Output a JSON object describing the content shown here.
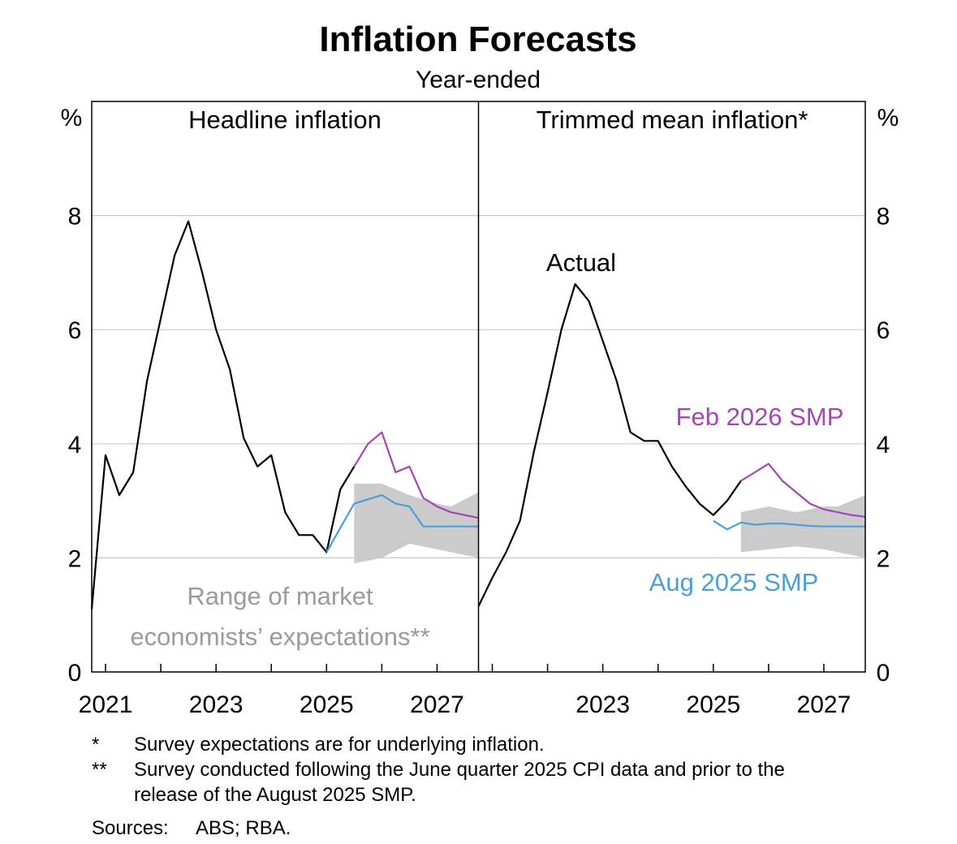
{
  "chart_data": {
    "type": "line",
    "title": "Inflation Forecasts",
    "subtitle": "Year-ended",
    "y_unit": "%",
    "ylim": [
      0,
      10
    ],
    "y_ticks": [
      0,
      2,
      4,
      6,
      8
    ],
    "grid": true,
    "colors": {
      "actual": "#000000",
      "feb_2026_smp": "#a545b7",
      "aug_2025_smp": "#4a9fd6",
      "range": "#cbcbcb",
      "range_label": "#9b9b9b",
      "grid": "#c8c8c8"
    },
    "panels": [
      {
        "id": "headline",
        "title": "Headline inflation",
        "xlim": [
          2020.75,
          2027.75
        ],
        "x_tick_labels": [
          "2021",
          "2023",
          "2025",
          "2027"
        ],
        "x_tick_values": [
          2021,
          2023,
          2025,
          2027
        ],
        "series": [
          {
            "name": "Actual",
            "color_key": "actual",
            "x": [
              2020.75,
              2021.0,
              2021.25,
              2021.5,
              2021.75,
              2022.0,
              2022.25,
              2022.5,
              2022.75,
              2023.0,
              2023.25,
              2023.5,
              2023.75,
              2024.0,
              2024.25,
              2024.5,
              2024.75,
              2025.0,
              2025.25,
              2025.5
            ],
            "y": [
              1.1,
              3.8,
              3.1,
              3.5,
              5.1,
              6.2,
              7.3,
              7.9,
              7.0,
              6.0,
              5.3,
              4.1,
              3.6,
              3.8,
              2.8,
              2.4,
              2.4,
              2.1,
              3.2,
              3.6
            ]
          },
          {
            "name": "Feb 2026 SMP",
            "color_key": "feb_2026_smp",
            "x": [
              2025.5,
              2025.75,
              2026.0,
              2026.25,
              2026.5,
              2026.75,
              2027.0,
              2027.25,
              2027.5,
              2027.75
            ],
            "y": [
              3.6,
              4.0,
              4.2,
              3.5,
              3.6,
              3.05,
              2.9,
              2.8,
              2.75,
              2.7
            ]
          },
          {
            "name": "Aug 2025 SMP",
            "color_key": "aug_2025_smp",
            "x": [
              2025.0,
              2025.5,
              2026.0,
              2026.25,
              2026.5,
              2026.75,
              2027.0,
              2027.25,
              2027.5,
              2027.75
            ],
            "y": [
              2.1,
              2.95,
              3.1,
              2.95,
              2.9,
              2.55,
              2.55,
              2.55,
              2.55,
              2.55
            ]
          }
        ],
        "range": {
          "name": "Range of market economists’ expectations**",
          "x": [
            2025.5,
            2026.0,
            2026.5,
            2027.0,
            2027.25,
            2027.75
          ],
          "upper": [
            3.3,
            3.3,
            3.1,
            2.95,
            2.9,
            3.15
          ],
          "lower": [
            1.9,
            2.0,
            2.25,
            2.15,
            2.1,
            2.0
          ]
        },
        "annotations": {
          "range_label_line1": "Range of market",
          "range_label_line2": "economists’ expectations**"
        }
      },
      {
        "id": "trimmed",
        "title": "Trimmed mean inflation*",
        "xlim": [
          2020.75,
          2027.75
        ],
        "x_tick_labels": [
          "2023",
          "2025",
          "2027"
        ],
        "x_tick_values": [
          2023,
          2025,
          2027
        ],
        "series": [
          {
            "name": "Actual",
            "color_key": "actual",
            "x": [
              2020.75,
              2021.0,
              2021.25,
              2021.5,
              2021.75,
              2022.0,
              2022.25,
              2022.5,
              2022.75,
              2023.0,
              2023.25,
              2023.5,
              2023.75,
              2024.0,
              2024.25,
              2024.5,
              2024.75,
              2025.0,
              2025.25,
              2025.5
            ],
            "y": [
              1.15,
              1.65,
              2.1,
              2.65,
              3.85,
              4.9,
              6.0,
              6.8,
              6.5,
              5.8,
              5.1,
              4.2,
              4.05,
              4.05,
              3.6,
              3.25,
              2.95,
              2.75,
              3.0,
              3.35
            ]
          },
          {
            "name": "Feb 2026 SMP",
            "color_key": "feb_2026_smp",
            "x": [
              2025.5,
              2025.75,
              2026.0,
              2026.25,
              2026.5,
              2026.75,
              2027.0,
              2027.25,
              2027.5,
              2027.75
            ],
            "y": [
              3.35,
              3.5,
              3.65,
              3.35,
              3.15,
              2.95,
              2.85,
              2.8,
              2.75,
              2.72
            ]
          },
          {
            "name": "Aug 2025 SMP",
            "color_key": "aug_2025_smp",
            "x": [
              2025.0,
              2025.25,
              2025.5,
              2025.75,
              2026.0,
              2026.25,
              2026.5,
              2026.75,
              2027.0,
              2027.25,
              2027.5,
              2027.75
            ],
            "y": [
              2.65,
              2.5,
              2.62,
              2.58,
              2.6,
              2.6,
              2.58,
              2.56,
              2.55,
              2.55,
              2.55,
              2.55
            ]
          }
        ],
        "range": {
          "name": "Range of market economists’ expectations**",
          "x": [
            2025.5,
            2026.0,
            2026.5,
            2027.0,
            2027.25,
            2027.75
          ],
          "upper": [
            2.8,
            2.9,
            2.8,
            2.9,
            2.9,
            3.1
          ],
          "lower": [
            2.1,
            2.15,
            2.2,
            2.15,
            2.1,
            2.0
          ]
        },
        "annotations": {
          "actual_label": "Actual",
          "feb_label": "Feb 2026 SMP",
          "aug_label": "Aug 2025 SMP"
        }
      }
    ]
  },
  "footnotes": [
    {
      "mark": "*",
      "text": "Survey expectations are for underlying inflation."
    },
    {
      "mark": "**",
      "text": "Survey conducted following the June quarter 2025 CPI data and prior to the release of the August 2025 SMP."
    }
  ],
  "sources": {
    "label": "Sources:",
    "text": "ABS; RBA."
  }
}
